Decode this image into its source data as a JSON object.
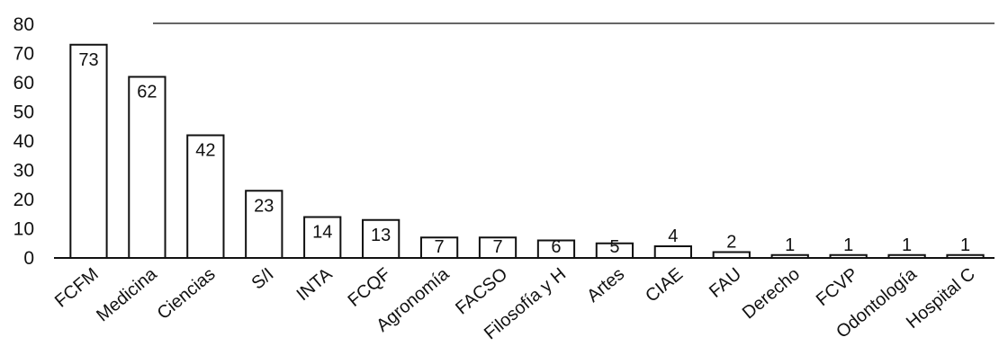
{
  "chart_data": {
    "type": "bar",
    "categories": [
      "FCFM",
      "Medicina",
      "Ciencias",
      "S/I",
      "INTA",
      "FCQF",
      "Agronomía",
      "FACSO",
      "Filosofía y H",
      "Artes",
      "CIAE",
      "FAU",
      "Derecho",
      "FCVP",
      "Odontología",
      "Hospital C"
    ],
    "values": [
      73,
      62,
      42,
      23,
      14,
      13,
      7,
      7,
      6,
      5,
      4,
      2,
      1,
      1,
      1,
      1
    ],
    "data_labels": [
      "73",
      "62",
      "42",
      "23",
      "14",
      "13",
      "7",
      "7",
      "6",
      "5",
      "4",
      "2",
      "1",
      "1",
      "1",
      "1"
    ],
    "title": "",
    "xlabel": "",
    "ylabel": "",
    "ylim": [
      0,
      80
    ],
    "yticks": [
      0,
      10,
      20,
      30,
      40,
      50,
      60,
      70,
      80
    ],
    "ytick_labels": [
      "0",
      "10",
      "20",
      "30",
      "40",
      "50",
      "60",
      "70",
      "80"
    ],
    "grid": false,
    "legend": "none",
    "colors": {
      "bar_fill": "#ffffff",
      "bar_stroke": "#111111",
      "text": "#111111"
    }
  }
}
